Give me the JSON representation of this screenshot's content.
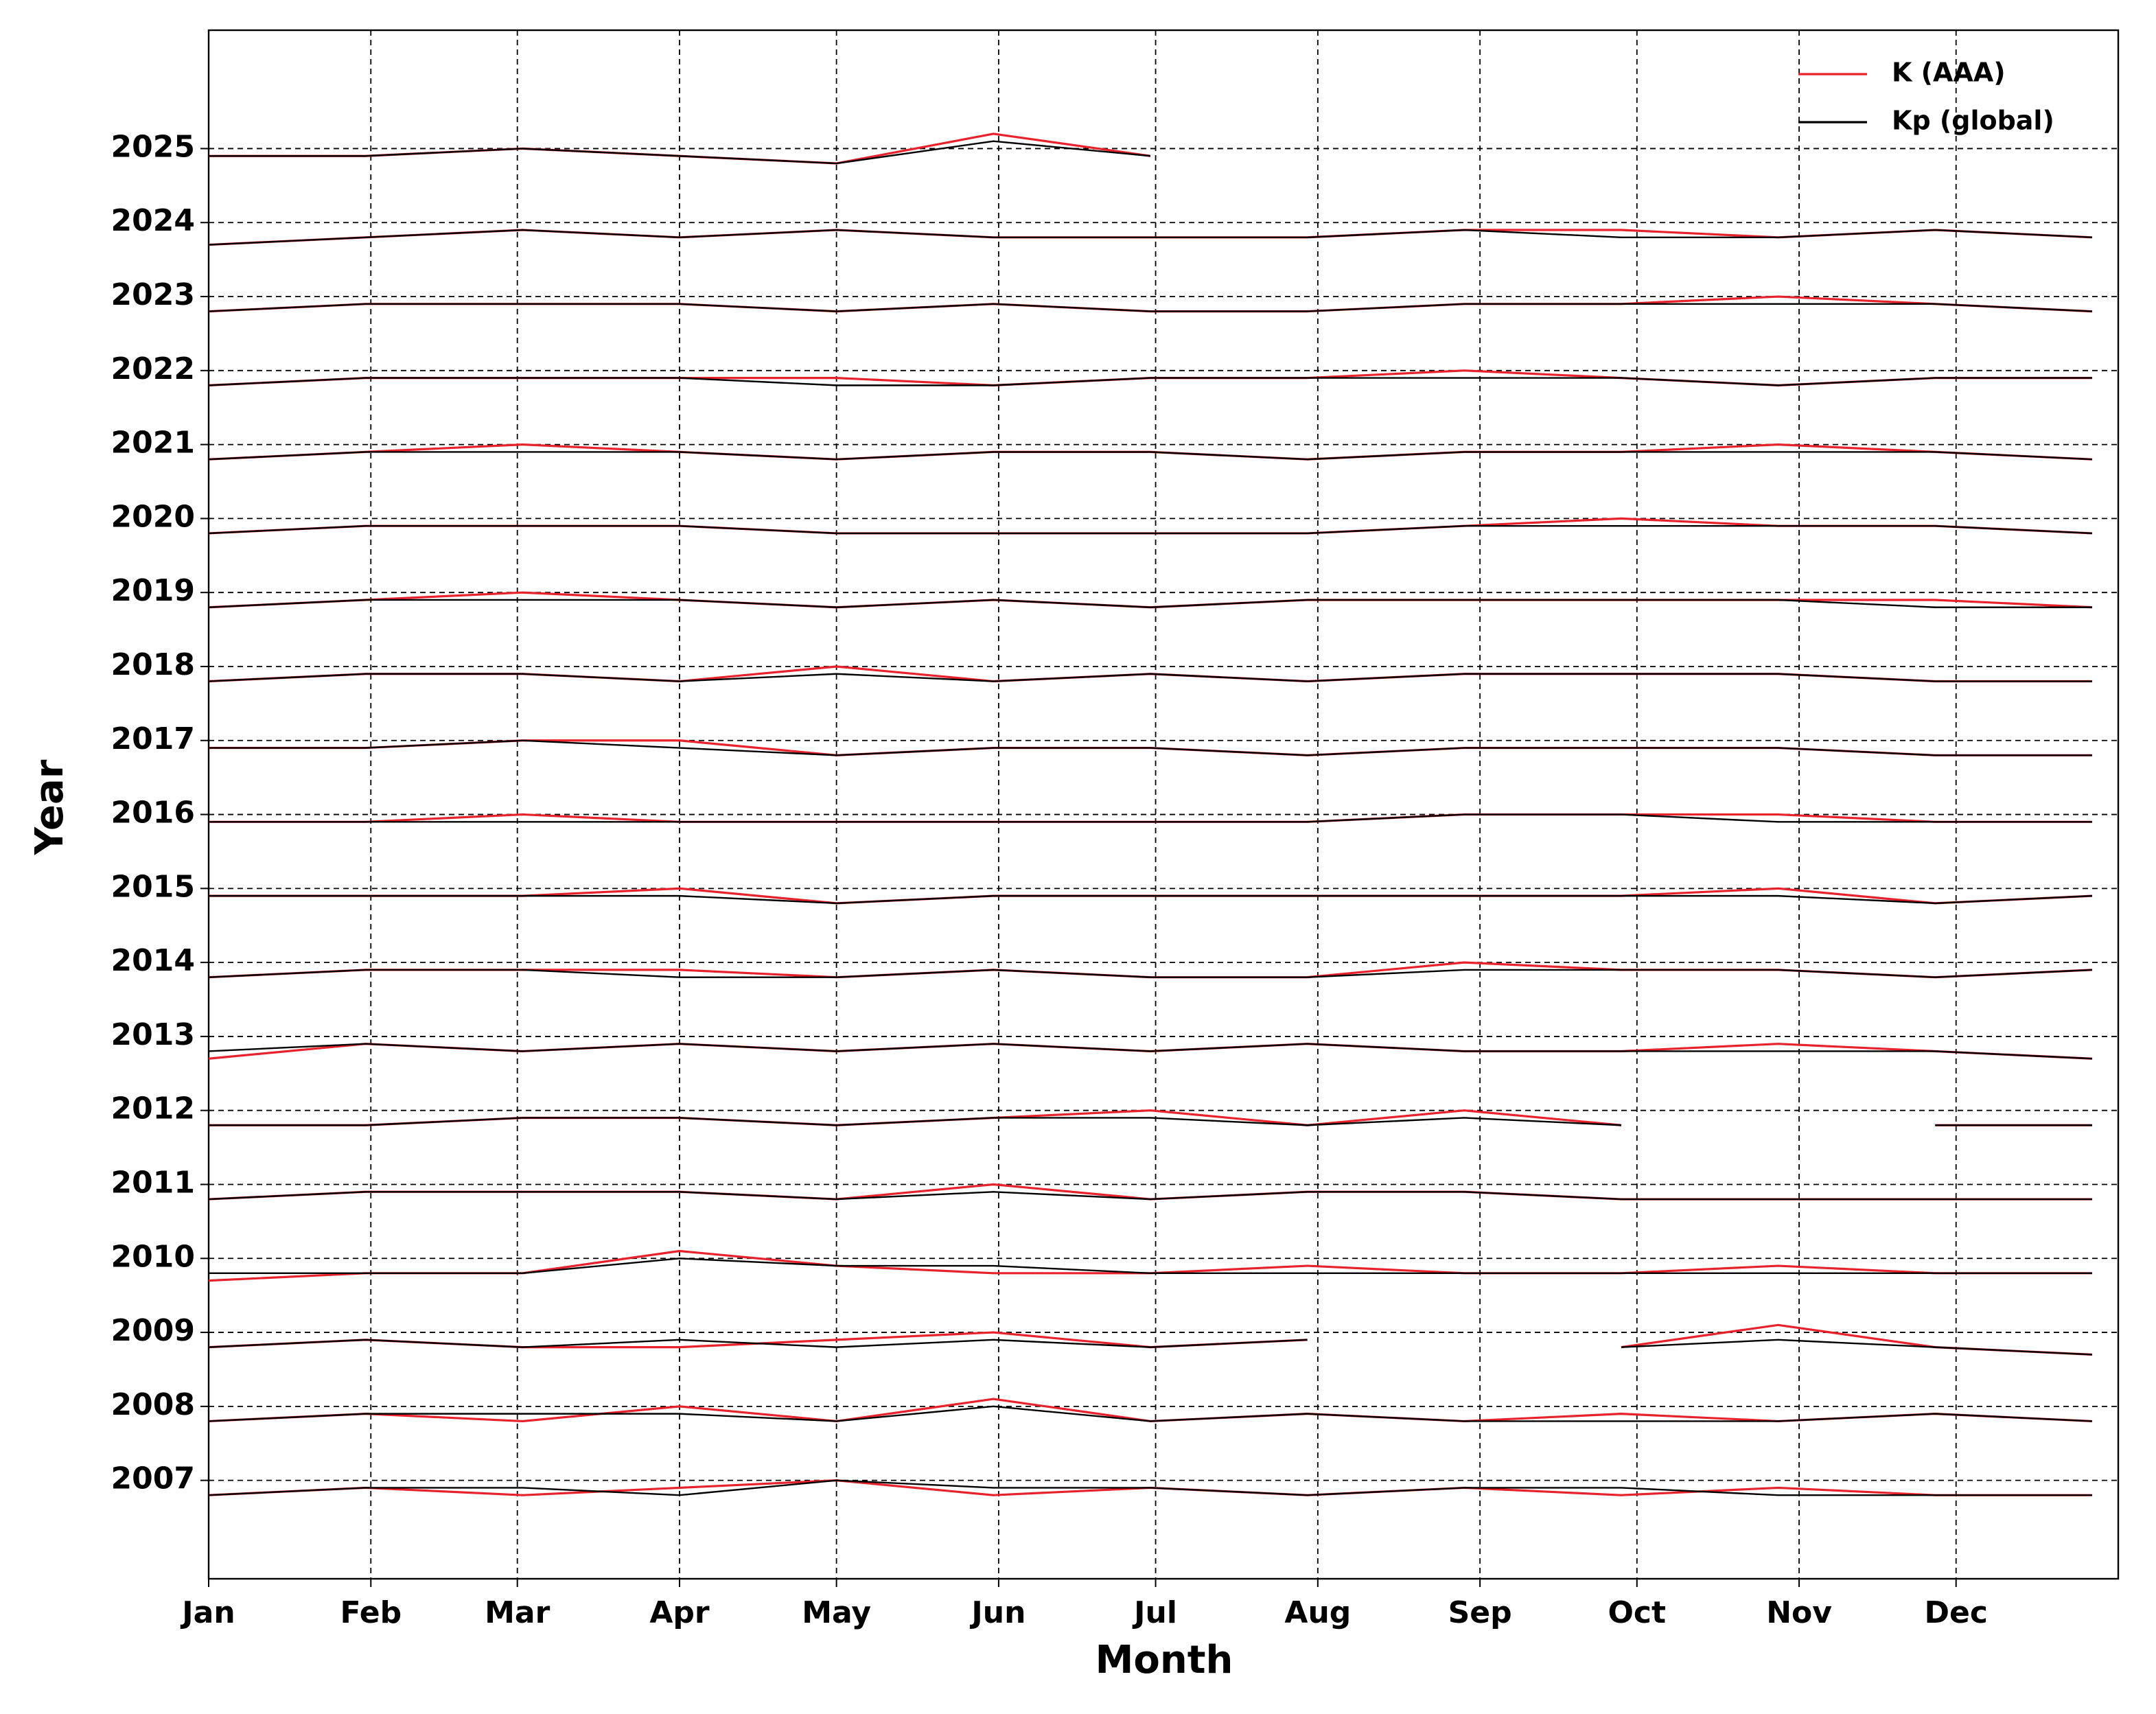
{
  "chart_data": {
    "type": "line",
    "x_label": "Month",
    "y_label": "Year",
    "x": [
      0,
      30,
      60,
      90,
      120,
      150,
      180,
      210,
      240,
      270,
      300,
      330,
      360
    ],
    "xlim": [
      0,
      365
    ],
    "xticks": [
      {
        "value": 0,
        "label": "Jan"
      },
      {
        "value": 31,
        "label": "Feb"
      },
      {
        "value": 59,
        "label": "Mar"
      },
      {
        "value": 90,
        "label": "Apr"
      },
      {
        "value": 120,
        "label": "May"
      },
      {
        "value": 151,
        "label": "Jun"
      },
      {
        "value": 181,
        "label": "Jul"
      },
      {
        "value": 212,
        "label": "Aug"
      },
      {
        "value": 243,
        "label": "Sep"
      },
      {
        "value": 273,
        "label": "Oct"
      },
      {
        "value": 304,
        "label": "Nov"
      },
      {
        "value": 334,
        "label": "Dec"
      }
    ],
    "ylim": [
      2005.67,
      2026.6
    ],
    "yticks": [
      2007,
      2008,
      2009,
      2010,
      2011,
      2012,
      2013,
      2014,
      2015,
      2016,
      2017,
      2018,
      2019,
      2020,
      2021,
      2022,
      2023,
      2024,
      2025
    ],
    "grid": true,
    "legend": "upper right",
    "series": [
      {
        "name": "K (AAA)",
        "color": "#e8212b",
        "values": [
          [
            2006.8,
            2006.9,
            2006.8,
            2006.9,
            2007.0,
            2006.8,
            2006.9,
            2006.8,
            2006.9,
            2006.8,
            2006.9,
            2006.8,
            2006.8
          ],
          [
            2007.8,
            2007.9,
            2007.8,
            2008.0,
            2007.8,
            2008.1,
            2007.8,
            2007.9,
            2007.8,
            2007.9,
            2007.8,
            2007.9,
            2007.8
          ],
          [
            2008.8,
            2008.9,
            2008.8,
            2008.8,
            2008.9,
            2009.0,
            2008.8,
            2008.9,
            null,
            2008.8,
            2009.1,
            2008.8,
            2008.7
          ],
          [
            2009.7,
            2009.8,
            2009.8,
            2010.1,
            2009.9,
            2009.8,
            2009.8,
            2009.9,
            2009.8,
            2009.8,
            2009.9,
            2009.8,
            2009.8
          ],
          [
            2010.8,
            2010.9,
            2010.9,
            2010.9,
            2010.8,
            2011.0,
            2010.8,
            2010.9,
            2010.9,
            2010.8,
            2010.8,
            2010.8,
            2010.8
          ],
          [
            2011.8,
            2011.8,
            2011.9,
            2011.9,
            2011.8,
            2011.9,
            2012.0,
            2011.8,
            2012.0,
            2011.8,
            null,
            2011.8,
            2011.8
          ],
          [
            2012.7,
            2012.9,
            2012.8,
            2012.9,
            2012.8,
            2012.9,
            2012.8,
            2012.9,
            2012.8,
            2012.8,
            2012.9,
            2012.8,
            2012.7
          ],
          [
            2013.8,
            2013.9,
            2013.9,
            2013.9,
            2013.8,
            2013.9,
            2013.8,
            2013.8,
            2014.0,
            2013.9,
            2013.9,
            2013.8,
            2013.9
          ],
          [
            2014.9,
            2014.9,
            2014.9,
            2015.0,
            2014.8,
            2014.9,
            2014.9,
            2014.9,
            2014.9,
            2014.9,
            2015.0,
            2014.8,
            2014.9
          ],
          [
            2015.9,
            2015.9,
            2016.0,
            2015.9,
            2015.9,
            2015.9,
            2015.9,
            2015.9,
            2016.0,
            2016.0,
            2016.0,
            2015.9,
            2015.9
          ],
          [
            2016.9,
            2016.9,
            2017.0,
            2017.0,
            2016.8,
            2016.9,
            2016.9,
            2016.8,
            2016.9,
            2016.9,
            2016.9,
            2016.8,
            2016.8
          ],
          [
            2017.8,
            2017.9,
            2017.9,
            2017.8,
            2018.0,
            2017.8,
            2017.9,
            2017.8,
            2017.9,
            2017.9,
            2017.9,
            2017.8,
            2017.8
          ],
          [
            2018.8,
            2018.9,
            2019.0,
            2018.9,
            2018.8,
            2018.9,
            2018.8,
            2018.9,
            2018.9,
            2018.9,
            2018.9,
            2018.9,
            2018.8
          ],
          [
            2019.8,
            2019.9,
            2019.9,
            2019.9,
            2019.8,
            2019.8,
            2019.8,
            2019.8,
            2019.9,
            2020.0,
            2019.9,
            2019.9,
            2019.8
          ],
          [
            2020.8,
            2020.9,
            2021.0,
            2020.9,
            2020.8,
            2020.9,
            2020.9,
            2020.8,
            2020.9,
            2020.9,
            2021.0,
            2020.9,
            2020.8
          ],
          [
            2021.8,
            2021.9,
            2021.9,
            2021.9,
            2021.9,
            2021.8,
            2021.9,
            2021.9,
            2022.0,
            2021.9,
            2021.8,
            2021.9,
            2021.9
          ],
          [
            2022.8,
            2022.9,
            2022.9,
            2022.9,
            2022.8,
            2022.9,
            2022.8,
            2022.8,
            2022.9,
            2022.9,
            2023.0,
            2022.9,
            2022.8
          ],
          [
            2023.7,
            2023.8,
            2023.9,
            2023.8,
            2023.9,
            2023.8,
            2023.8,
            2023.8,
            2023.9,
            2023.9,
            2023.8,
            2023.9,
            2023.8
          ],
          [
            2024.9,
            2024.9,
            2025.0,
            2024.9,
            2024.8,
            2025.2,
            2024.9,
            null,
            null,
            null,
            null,
            null,
            null
          ]
        ]
      },
      {
        "name": "Kp (global)",
        "color": "#000000",
        "values": [
          [
            2006.8,
            2006.9,
            2006.9,
            2006.8,
            2007.0,
            2006.9,
            2006.9,
            2006.8,
            2006.9,
            2006.9,
            2006.8,
            2006.8,
            2006.8
          ],
          [
            2007.8,
            2007.9,
            2007.9,
            2007.9,
            2007.8,
            2008.0,
            2007.8,
            2007.9,
            2007.8,
            2007.8,
            2007.8,
            2007.9,
            2007.8
          ],
          [
            2008.8,
            2008.9,
            2008.8,
            2008.9,
            2008.8,
            2008.9,
            2008.8,
            2008.9,
            null,
            2008.8,
            2008.9,
            2008.8,
            2008.7
          ],
          [
            2009.8,
            2009.8,
            2009.8,
            2010.0,
            2009.9,
            2009.9,
            2009.8,
            2009.8,
            2009.8,
            2009.8,
            2009.8,
            2009.8,
            2009.8
          ],
          [
            2010.8,
            2010.9,
            2010.9,
            2010.9,
            2010.8,
            2010.9,
            2010.8,
            2010.9,
            2010.9,
            2010.8,
            2010.8,
            2010.8,
            2010.8
          ],
          [
            2011.8,
            2011.8,
            2011.9,
            2011.9,
            2011.8,
            2011.9,
            2011.9,
            2011.8,
            2011.9,
            2011.8,
            null,
            2011.8,
            2011.8
          ],
          [
            2012.8,
            2012.9,
            2012.8,
            2012.9,
            2012.8,
            2012.9,
            2012.8,
            2012.9,
            2012.8,
            2012.8,
            2012.8,
            2012.8,
            2012.7
          ],
          [
            2013.8,
            2013.9,
            2013.9,
            2013.8,
            2013.8,
            2013.9,
            2013.8,
            2013.8,
            2013.9,
            2013.9,
            2013.9,
            2013.8,
            2013.9
          ],
          [
            2014.9,
            2014.9,
            2014.9,
            2014.9,
            2014.8,
            2014.9,
            2014.9,
            2014.9,
            2014.9,
            2014.9,
            2014.9,
            2014.8,
            2014.9
          ],
          [
            2015.9,
            2015.9,
            2015.9,
            2015.9,
            2015.9,
            2015.9,
            2015.9,
            2015.9,
            2016.0,
            2016.0,
            2015.9,
            2015.9,
            2015.9
          ],
          [
            2016.9,
            2016.9,
            2017.0,
            2016.9,
            2016.8,
            2016.9,
            2016.9,
            2016.8,
            2016.9,
            2016.9,
            2016.9,
            2016.8,
            2016.8
          ],
          [
            2017.8,
            2017.9,
            2017.9,
            2017.8,
            2017.9,
            2017.8,
            2017.9,
            2017.8,
            2017.9,
            2017.9,
            2017.9,
            2017.8,
            2017.8
          ],
          [
            2018.8,
            2018.9,
            2018.9,
            2018.9,
            2018.8,
            2018.9,
            2018.8,
            2018.9,
            2018.9,
            2018.9,
            2018.9,
            2018.8,
            2018.8
          ],
          [
            2019.8,
            2019.9,
            2019.9,
            2019.9,
            2019.8,
            2019.8,
            2019.8,
            2019.8,
            2019.9,
            2019.9,
            2019.9,
            2019.9,
            2019.8
          ],
          [
            2020.8,
            2020.9,
            2020.9,
            2020.9,
            2020.8,
            2020.9,
            2020.9,
            2020.8,
            2020.9,
            2020.9,
            2020.9,
            2020.9,
            2020.8
          ],
          [
            2021.8,
            2021.9,
            2021.9,
            2021.9,
            2021.8,
            2021.8,
            2021.9,
            2021.9,
            2021.9,
            2021.9,
            2021.8,
            2021.9,
            2021.9
          ],
          [
            2022.8,
            2022.9,
            2022.9,
            2022.9,
            2022.8,
            2022.9,
            2022.8,
            2022.8,
            2022.9,
            2022.9,
            2022.9,
            2022.9,
            2022.8
          ],
          [
            2023.7,
            2023.8,
            2023.9,
            2023.8,
            2023.9,
            2023.8,
            2023.8,
            2023.8,
            2023.9,
            2023.8,
            2023.8,
            2023.9,
            2023.8
          ],
          [
            2024.9,
            2024.9,
            2025.0,
            2024.9,
            2024.8,
            2025.1,
            2024.9,
            null,
            null,
            null,
            null,
            null,
            null
          ]
        ]
      }
    ]
  }
}
